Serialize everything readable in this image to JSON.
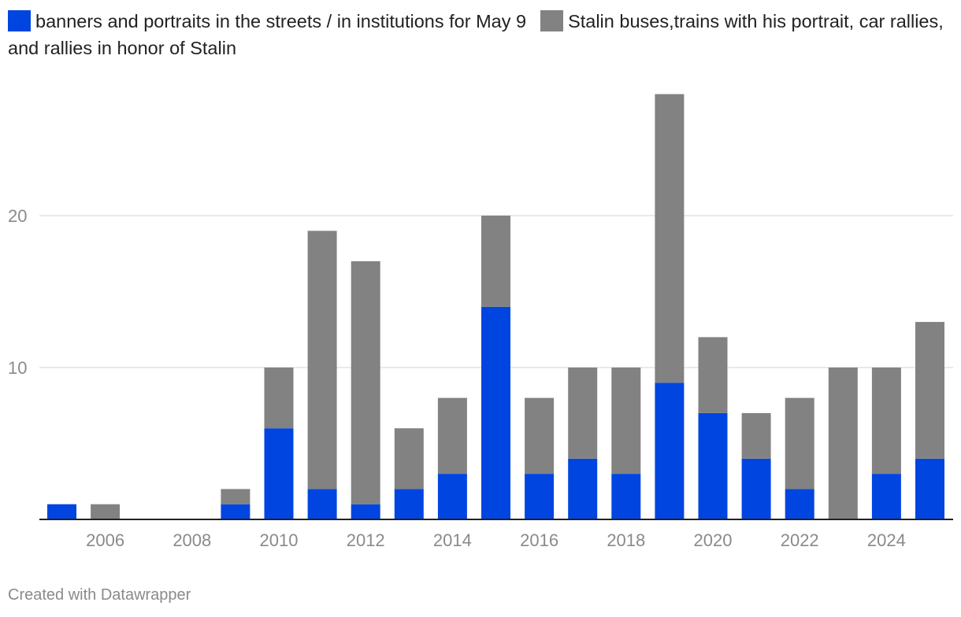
{
  "legend": [
    {
      "label": "banners and portraits in the streets / in institutions for May 9",
      "color": "#0145e1"
    },
    {
      "label": "Stalin buses,trains with his portrait, car rallies, and rallies in honor of Stalin",
      "color": "#828282"
    }
  ],
  "footer": {
    "text": "Created with Datawrapper"
  },
  "chart_data": {
    "type": "bar",
    "stacked": true,
    "categories": [
      2005,
      2006,
      2007,
      2008,
      2009,
      2010,
      2011,
      2012,
      2013,
      2014,
      2015,
      2016,
      2017,
      2018,
      2019,
      2020,
      2021,
      2022,
      2023,
      2024,
      2025
    ],
    "series": [
      {
        "name": "banners and portraits in the streets / in institutions for May 9",
        "color": "#0145e1",
        "values": [
          1,
          0,
          0,
          0,
          1,
          6,
          2,
          1,
          2,
          3,
          14,
          3,
          4,
          3,
          9,
          7,
          4,
          2,
          0,
          3,
          4
        ]
      },
      {
        "name": "Stalin buses,trains with his portrait, car rallies, and rallies in honor of Stalin",
        "color": "#828282",
        "values": [
          0,
          1,
          0,
          0,
          1,
          4,
          17,
          16,
          4,
          5,
          6,
          5,
          6,
          7,
          19,
          5,
          3,
          6,
          10,
          7,
          9
        ]
      }
    ],
    "y_ticks": [
      10,
      20
    ],
    "x_ticks": [
      "2006",
      "2008",
      "2010",
      "2012",
      "2014",
      "2016",
      "2018",
      "2020",
      "2022",
      "2024"
    ],
    "ylim": [
      0,
      28
    ],
    "grid": true,
    "title": "",
    "xlabel": "",
    "ylabel": ""
  }
}
